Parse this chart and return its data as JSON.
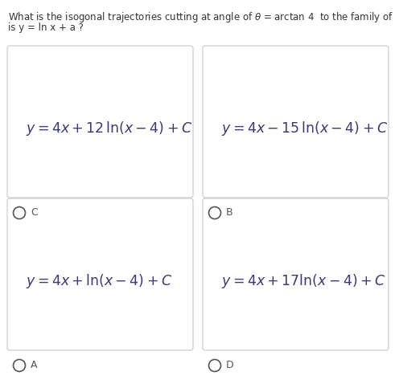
{
  "question_line1": "What is the isogonal trajectories cutting at angle of $\\theta$ = arctan 4  to the family of curves whose equation",
  "question_line2": "is y = ln x + a ?",
  "options": [
    {
      "label": "C",
      "formula": "$y = 4x + 12\\,\\mathrm{ln}(x - 4) + C$",
      "row": 0,
      "col": 0
    },
    {
      "label": "B",
      "formula": "$y = 4x - 15\\,\\mathrm{ln}(x - 4) + C$",
      "row": 0,
      "col": 1
    },
    {
      "label": "A",
      "formula": "$y = 4x + \\mathrm{ln}(x - 4) + C$",
      "row": 1,
      "col": 0
    },
    {
      "label": "D",
      "formula": "$y = 4x + 17\\mathrm{ln}(x - 4) + C$",
      "row": 1,
      "col": 1
    }
  ],
  "bg_color": "#ffffff",
  "box_facecolor": "#ffffff",
  "box_edgecolor": "#c8c8c8",
  "formula_color": "#3a3a7a",
  "label_color": "#555555",
  "question_color": "#333333",
  "formula_fontsize": 12.5,
  "label_fontsize": 9,
  "question_fontsize": 8.5
}
